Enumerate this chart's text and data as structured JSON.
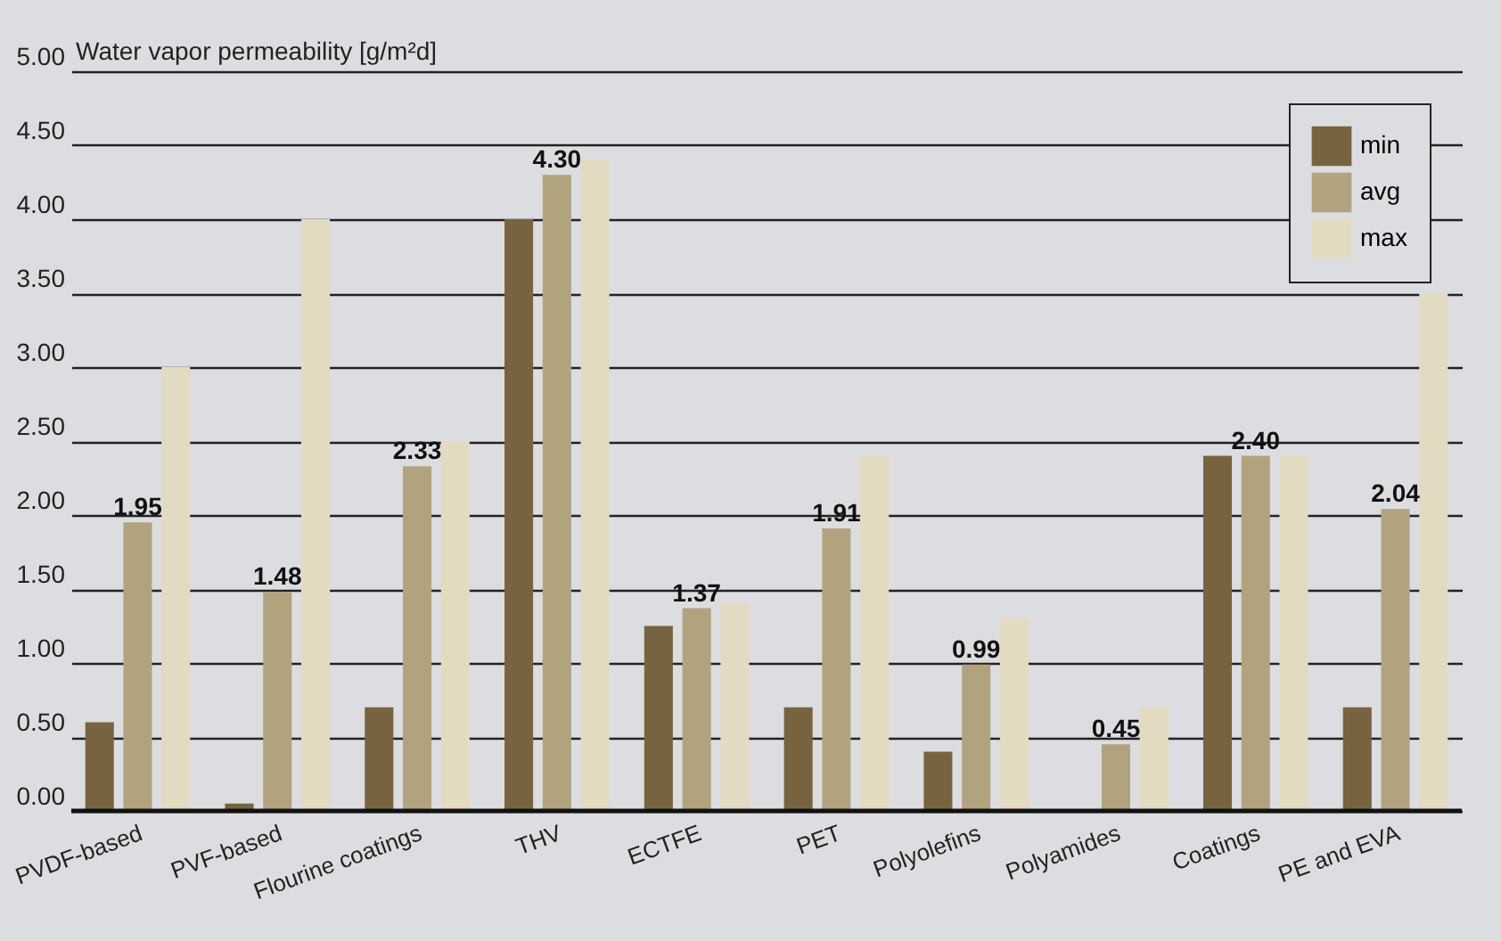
{
  "chart_data": {
    "type": "bar",
    "ylabel": "Water vapor permeability [g/m²d]",
    "categories": [
      "PVDF-based",
      "PVF-based",
      "Flourine coatings",
      "THV",
      "ECTFE",
      "PET",
      "Polyolefins",
      "Polyamides",
      "Coatings",
      "PE and EVA"
    ],
    "series": [
      {
        "name": "min",
        "color": "#77643f",
        "values": [
          0.6,
          0.05,
          0.7,
          4.0,
          1.25,
          0.7,
          0.4,
          0,
          2.4,
          0.7
        ]
      },
      {
        "name": "avg",
        "color": "#b2a37f",
        "values": [
          1.95,
          1.48,
          2.33,
          4.3,
          1.37,
          1.91,
          0.99,
          0.45,
          2.4,
          2.04
        ],
        "value_labels": [
          "1.95",
          "1.48",
          "2.33",
          "4.30",
          "1.37",
          "1.91",
          "0.99",
          "0.45",
          "2.40",
          "2.04"
        ]
      },
      {
        "name": "max",
        "color": "#e2dbc1",
        "values": [
          3.0,
          4.0,
          2.5,
          4.4,
          1.4,
          2.4,
          1.3,
          0.7,
          2.4,
          3.5
        ]
      }
    ],
    "ylim": [
      0,
      5
    ],
    "yticks": [
      {
        "value": 0,
        "label": "0.00"
      },
      {
        "value": 0.5,
        "label": "0.50"
      },
      {
        "value": 1,
        "label": "1.00"
      },
      {
        "value": 1.5,
        "label": "1.50"
      },
      {
        "value": 2,
        "label": "2.00"
      },
      {
        "value": 2.5,
        "label": "2.50"
      },
      {
        "value": 3,
        "label": "3.00"
      },
      {
        "value": 3.5,
        "label": "3.50"
      },
      {
        "value": 4,
        "label": "4.00"
      },
      {
        "value": 4.5,
        "label": "4.50"
      },
      {
        "value": 5,
        "label": "5.00"
      }
    ],
    "grid": "y",
    "legend": "top right"
  }
}
